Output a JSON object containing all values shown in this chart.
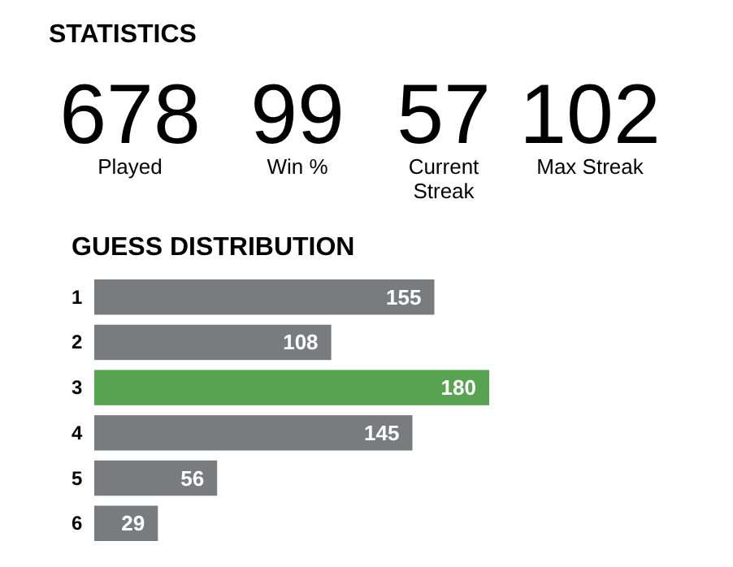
{
  "chart_data": [
    {
      "type": "other",
      "title": "STATISTICS",
      "categories": [
        "Played",
        "Win %",
        "Current Streak",
        "Max Streak"
      ],
      "values": [
        678,
        99,
        57,
        102
      ],
      "data_labels": true
    },
    {
      "type": "bar",
      "orientation": "horizontal",
      "title": "GUESS DISTRIBUTION",
      "categories": [
        "1",
        "2",
        "3",
        "4",
        "5",
        "6"
      ],
      "values": [
        155,
        108,
        180,
        145,
        56,
        29
      ],
      "colors": [
        "#787c7e",
        "#787c7e",
        "#58a351",
        "#787c7e",
        "#787c7e",
        "#787c7e"
      ],
      "data_labels": true
    }
  ]
}
